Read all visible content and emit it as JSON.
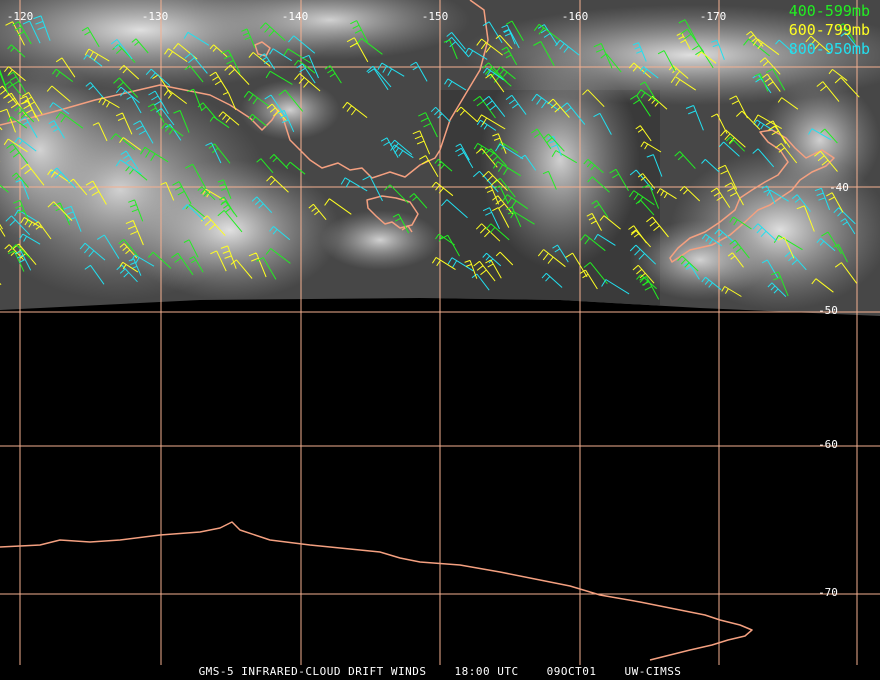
{
  "legend": [
    {
      "label": "400-599mb",
      "color": "#22ee22"
    },
    {
      "label": "600-799mb",
      "color": "#ffff22"
    },
    {
      "label": "800-950mb",
      "color": "#22e0f0"
    }
  ],
  "longitude_labels": [
    "-120",
    "-130",
    "-140",
    "-150",
    "-160",
    "-170"
  ],
  "latitude_labels": [
    "-40",
    "-50",
    "-60",
    "-70"
  ],
  "footer": {
    "product": "GMS-5 INFRARED-CLOUD DRIFT WINDS",
    "time": "18:00 UTC",
    "date": "09OCT01",
    "source": "UW-CIMSS"
  },
  "colors": {
    "background": "#000000",
    "grid": "#f4b090",
    "coast": "#f4a080",
    "cloud": "#bdbdbd"
  }
}
